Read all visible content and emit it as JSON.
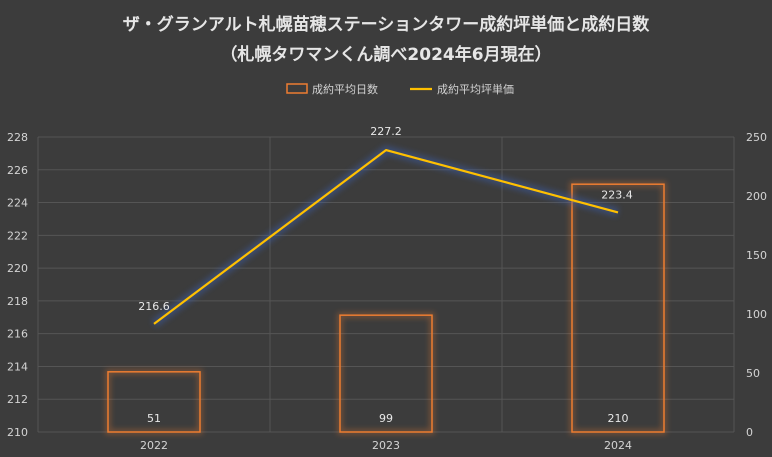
{
  "chart_data": {
    "type": "bar+line",
    "title": "ザ・グランアルト札幌苗穂ステーションタワー成約坪単価と成約日数",
    "subtitle": "（札幌タワマンくん調べ2024年6月現在）",
    "categories": [
      "2022",
      "2023",
      "2024"
    ],
    "series": [
      {
        "name": "成約平均日数",
        "type": "bar",
        "axis": "right",
        "values": [
          51,
          99,
          210
        ],
        "labels": [
          "51",
          "99",
          "210"
        ],
        "color": "#ed7d31"
      },
      {
        "name": "成約平均坪単価",
        "type": "line",
        "axis": "left",
        "values": [
          216.6,
          227.2,
          223.4
        ],
        "labels": [
          "216.6",
          "227.2",
          "223.4"
        ],
        "color": "#ffc000"
      }
    ],
    "y_left": {
      "min": 210,
      "max": 228,
      "step": 2,
      "ticks": [
        "210",
        "212",
        "214",
        "216",
        "218",
        "220",
        "222",
        "224",
        "226",
        "228"
      ]
    },
    "y_right": {
      "min": 0,
      "max": 250,
      "step": 50,
      "ticks": [
        "0",
        "50",
        "100",
        "150",
        "200",
        "250"
      ]
    },
    "grid": true,
    "legend_position": "top"
  }
}
